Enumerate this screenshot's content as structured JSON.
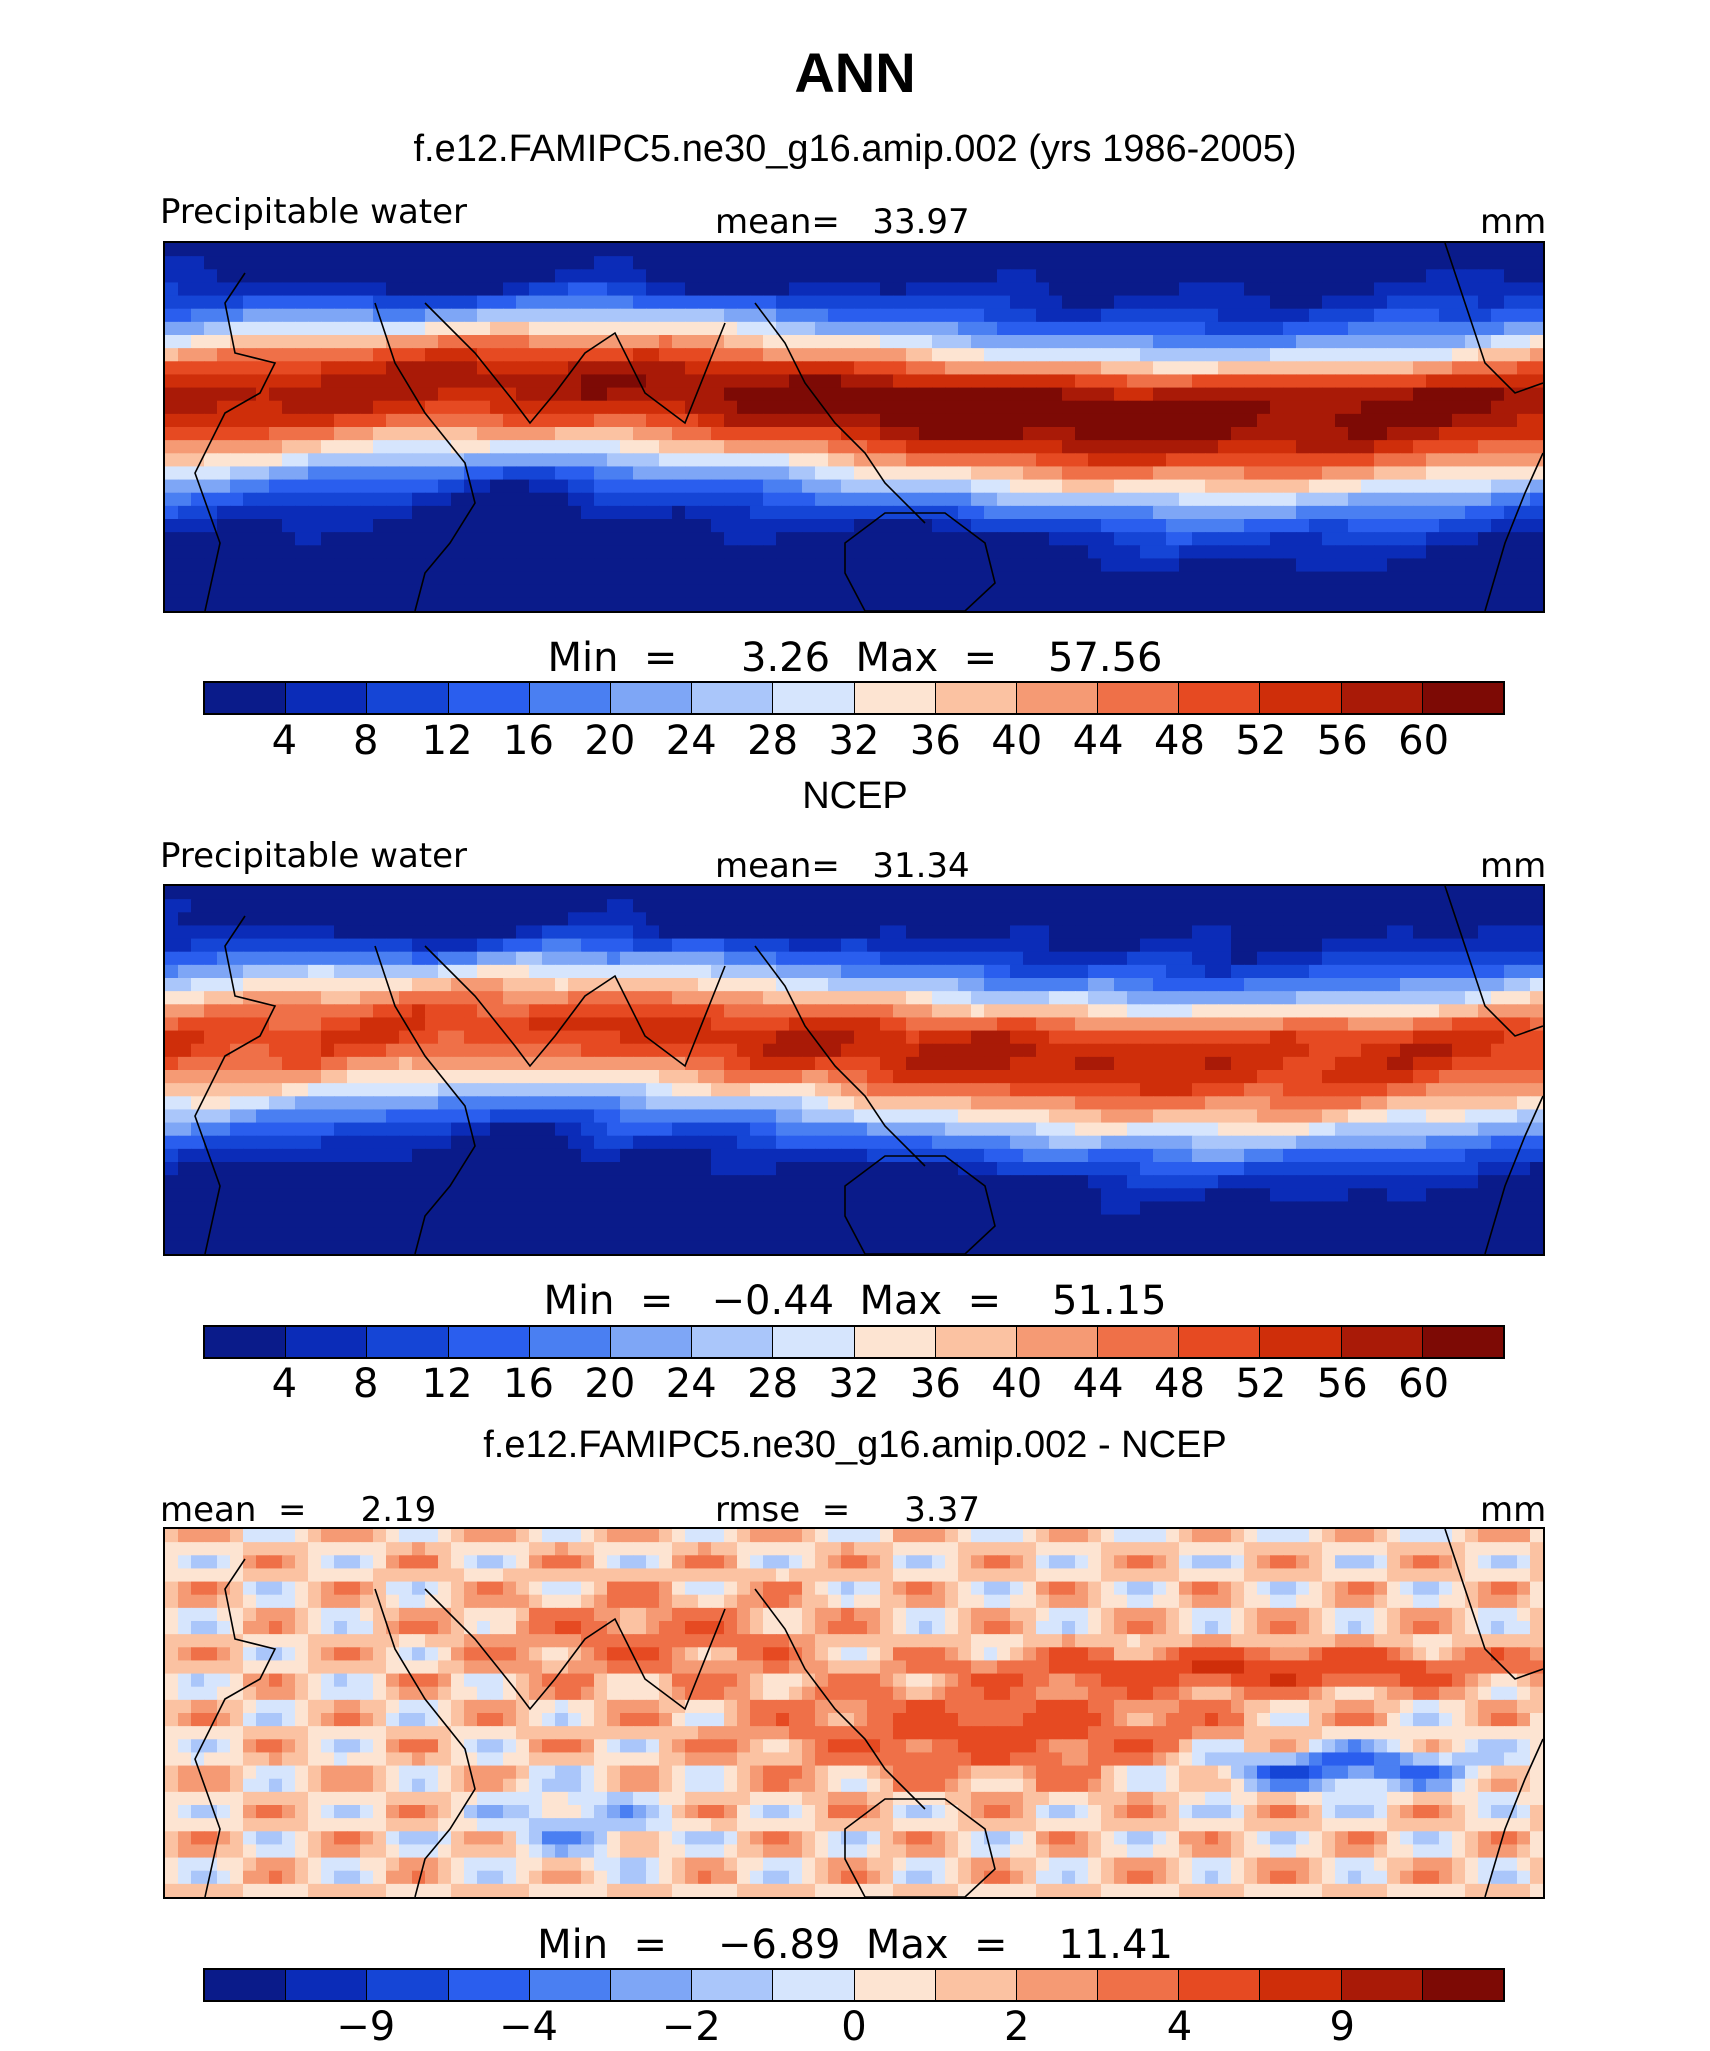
{
  "title": "ANN",
  "palette": [
    "#0a1b8a",
    "#0b2cb8",
    "#1545d6",
    "#2a5eee",
    "#4a7ff2",
    "#7ea6f6",
    "#aac6fa",
    "#d6e5fd",
    "#fde4d2",
    "#fbc2a2",
    "#f59a74",
    "#ef7048",
    "#e64a22",
    "#cf2e0a",
    "#a91a07",
    "#7d0a05"
  ],
  "panels": [
    {
      "title": "f.e12.FAMIPC5.ne30_g16.amip.002 (yrs 1986-2005)",
      "left_label": "Precipitable water",
      "center_label": "mean=   33.97",
      "right_label": "mm",
      "minmax": "Min  =     3.26  Max  =    57.56",
      "ticks": [
        "4",
        "8",
        "12",
        "16",
        "20",
        "24",
        "28",
        "32",
        "36",
        "40",
        "44",
        "48",
        "52",
        "56",
        "60"
      ],
      "field": "model"
    },
    {
      "title": "NCEP",
      "left_label": "Precipitable water",
      "center_label": "mean=   31.34",
      "right_label": "mm",
      "minmax": "Min  =   −0.44  Max  =    51.15",
      "ticks": [
        "4",
        "8",
        "12",
        "16",
        "20",
        "24",
        "28",
        "32",
        "36",
        "40",
        "44",
        "48",
        "52",
        "56",
        "60"
      ],
      "field": "obs"
    },
    {
      "title": "f.e12.FAMIPC5.ne30_g16.amip.002 - NCEP",
      "left_label": "mean  =     2.19",
      "center_label": "rmse  =     3.37",
      "right_label": "mm",
      "minmax": "Min  =    −6.89  Max  =    11.41",
      "ticks": [
        "−9",
        "−4",
        "−2",
        "0",
        "2",
        "4",
        "9"
      ],
      "field": "diff"
    }
  ]
}
